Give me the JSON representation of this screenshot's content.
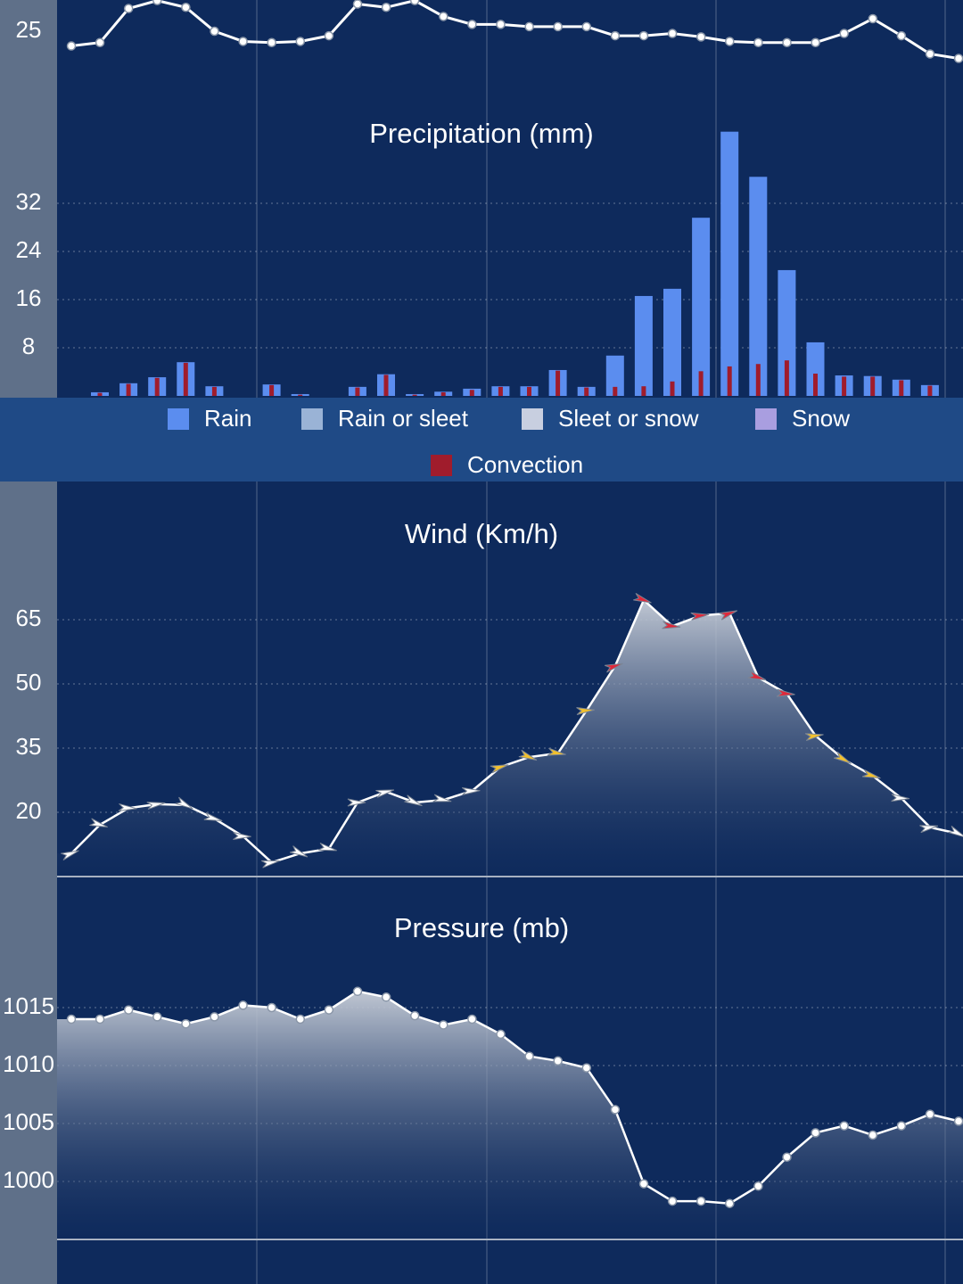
{
  "chart_data": [
    {
      "type": "line",
      "color": "#ffffff",
      "values": [
        23.7,
        24.0,
        27.0,
        27.7,
        27.1,
        25.0,
        24.1,
        24.0,
        24.1,
        24.6,
        27.4,
        27.1,
        27.7,
        26.3,
        25.6,
        25.6,
        25.4,
        25.4,
        25.4,
        24.6,
        24.6,
        24.8,
        24.5,
        24.1,
        24.0,
        24.0,
        24.0,
        24.8,
        26.1,
        24.6,
        23.0,
        22.6
      ],
      "ylim": [
        22.25,
        27.75
      ],
      "yticks": [
        25
      ],
      "grid": false
    },
    {
      "type": "bar",
      "title": "Precipitation (mm)",
      "series": [
        {
          "name": "Rain",
          "color": "#5b8def",
          "values": [
            0.6,
            2.1,
            3.1,
            5.6,
            1.6,
            0,
            1.9,
            0.3,
            0,
            1.5,
            3.6,
            0.3,
            0.7,
            1.2,
            1.6,
            1.6,
            4.3,
            1.5,
            6.7,
            16.6,
            17.8,
            29.6,
            43.9,
            36.4,
            20.9,
            8.9,
            3.4,
            3.3,
            2.7,
            1.8
          ]
        },
        {
          "name": "Rain or sleet",
          "color": "#9ab3d6"
        },
        {
          "name": "Sleet or snow",
          "color": "#c8cfe0"
        },
        {
          "name": "Snow",
          "color": "#a99ee0"
        },
        {
          "name": "Convection",
          "color": "#a01c2c",
          "values": [
            0.5,
            2,
            3,
            5.5,
            1.5,
            0,
            1.8,
            0.2,
            0,
            1.4,
            3.5,
            0.2,
            0.6,
            1,
            1.5,
            1.5,
            4.2,
            1.4,
            1.5,
            1.6,
            2.4,
            4.1,
            4.9,
            5.3,
            5.9,
            3.7,
            3.2,
            3.2,
            2.6,
            1.7
          ]
        }
      ],
      "ylim": [
        0,
        46
      ],
      "yticks": [
        8,
        16,
        24,
        32
      ],
      "grid": true
    },
    {
      "type": "area",
      "title": "Wind (Km/h)",
      "color": "#ffffff",
      "values": [
        10.4,
        17.1,
        21.0,
        21.9,
        21.7,
        18.5,
        14.4,
        8.3,
        10.4,
        11.5,
        22.3,
        24.8,
        22.3,
        22.9,
        25.0,
        30.6,
        32.9,
        33.8,
        43.8,
        54.2,
        69.6,
        63.5,
        66.0,
        66.5,
        51.5,
        47.7,
        37.9,
        32.3,
        28.5,
        23.3,
        16.5,
        15.0
      ],
      "marker_colors": [
        "#ffffff",
        "#ffffff",
        "#ffffff",
        "#ffffff",
        "#ffffff",
        "#ffffff",
        "#ffffff",
        "#ffffff",
        "#ffffff",
        "#ffffff",
        "#ffffff",
        "#ffffff",
        "#ffffff",
        "#ffffff",
        "#ffffff",
        "#f2c12e",
        "#f2c12e",
        "#f2c12e",
        "#f2c12e",
        "#e0283a",
        "#e0283a",
        "#e0283a",
        "#e0283a",
        "#e0283a",
        "#e0283a",
        "#e0283a",
        "#f2c12e",
        "#f2c12e",
        "#f2c12e",
        "#ffffff",
        "#ffffff",
        "#ffffff"
      ],
      "ylim": [
        5,
        80
      ],
      "yticks": [
        20,
        35,
        50,
        65
      ],
      "grid": true
    },
    {
      "type": "area",
      "title": "Pressure (mb)",
      "color": "#ffffff",
      "values": [
        1014.0,
        1014.0,
        1014.8,
        1014.2,
        1013.6,
        1014.2,
        1015.2,
        1015.0,
        1014.0,
        1014.8,
        1016.4,
        1015.9,
        1014.3,
        1013.5,
        1014.0,
        1012.7,
        1010.8,
        1010.4,
        1009.8,
        1006.2,
        999.8,
        998.3,
        998.3,
        998.1,
        999.6,
        1002.1,
        1004.2,
        1004.8,
        1004.0,
        1004.8,
        1005.8,
        1005.2
      ],
      "ylim": [
        995,
        1023
      ],
      "yticks": [
        1000,
        1005,
        1010,
        1015
      ],
      "grid": true
    }
  ]
}
